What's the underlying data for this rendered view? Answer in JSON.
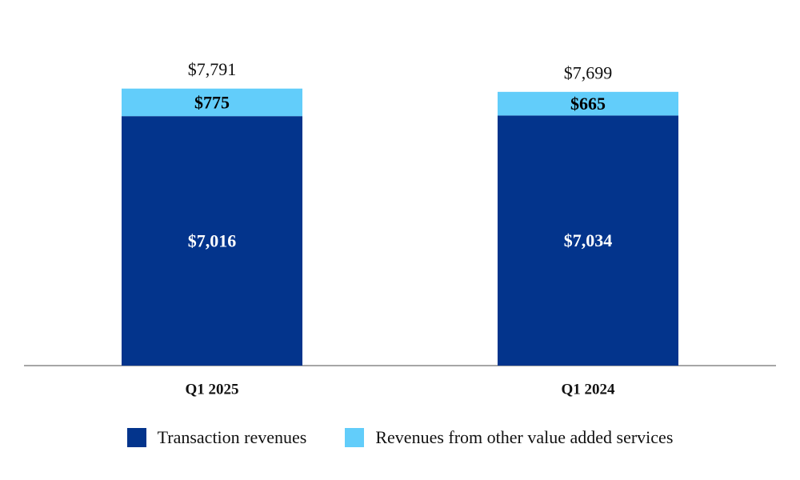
{
  "chart_data": {
    "type": "bar",
    "stacked": true,
    "categories": [
      "Q1 2025",
      "Q1 2024"
    ],
    "series": [
      {
        "name": "Transaction revenues",
        "values": [
          7016,
          7034
        ],
        "labels": [
          "$7,016",
          "$7,034"
        ],
        "color": "#03348c"
      },
      {
        "name": "Revenues from other value added services",
        "values": [
          775,
          665
        ],
        "labels": [
          "$775",
          "$665"
        ],
        "color": "#62cdfa"
      }
    ],
    "totals": [
      7791,
      7699
    ],
    "total_labels": [
      "$7,791",
      "$7,699"
    ],
    "ylim": [
      0,
      9000
    ],
    "title": "",
    "xlabel": "",
    "ylabel": "",
    "legend_position": "bottom-center"
  }
}
